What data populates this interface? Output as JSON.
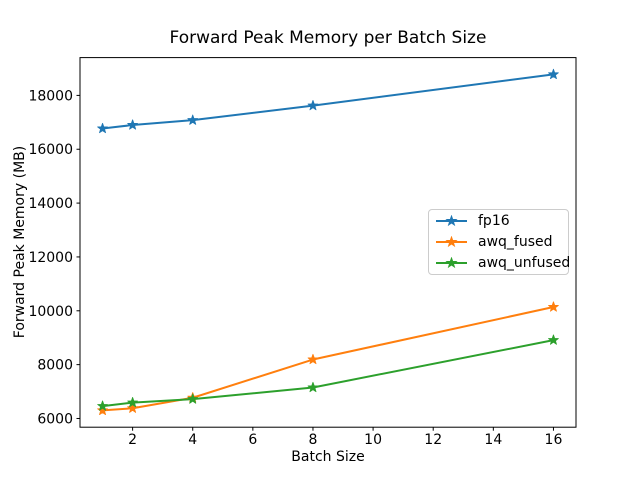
{
  "chart_data": {
    "type": "line",
    "title": "Forward Peak Memory per Batch Size",
    "xlabel": "Batch Size",
    "ylabel": "Forward Peak Memory (MB)",
    "x": [
      1,
      2,
      4,
      8,
      16
    ],
    "series": [
      {
        "name": "fp16",
        "color": "#1f77b4",
        "marker": "star",
        "values": [
          16770,
          16900,
          17080,
          17620,
          18780
        ]
      },
      {
        "name": "awq_fused",
        "color": "#ff7f0e",
        "marker": "star",
        "values": [
          6300,
          6380,
          6770,
          8190,
          10140
        ]
      },
      {
        "name": "awq_unfused",
        "color": "#2ca02c",
        "marker": "star",
        "values": [
          6460,
          6590,
          6720,
          7150,
          8910
        ]
      }
    ],
    "xticks": [
      2,
      4,
      6,
      8,
      10,
      12,
      14,
      16
    ],
    "yticks": [
      6000,
      8000,
      10000,
      12000,
      14000,
      16000,
      18000
    ],
    "xlim": [
      0.25,
      16.75
    ],
    "ylim": [
      5676,
      19404
    ],
    "grid": false,
    "legend_position": "center-right"
  }
}
